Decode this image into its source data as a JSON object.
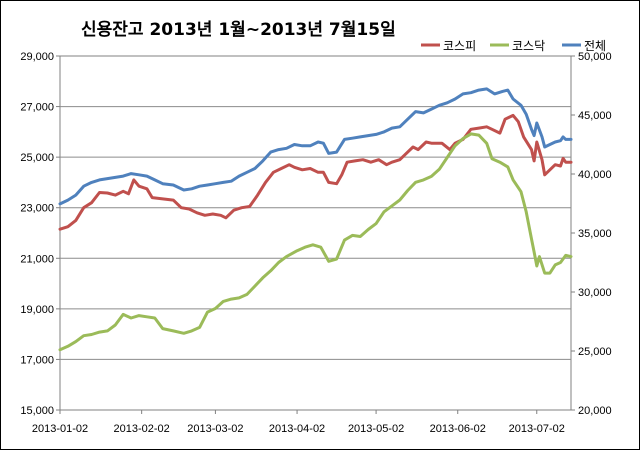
{
  "chart_data": {
    "type": "line",
    "title": "신용잔고  2013년 1월~2013년 7월15일",
    "legend_position": "top-right",
    "grid": true,
    "x_range": [
      "2013-01-02",
      "2013-07-15"
    ],
    "x_ticks": [
      "2013-01-02",
      "2013-02-02",
      "2013-03-02",
      "2013-04-02",
      "2013-05-02",
      "2013-06-02",
      "2013-07-02"
    ],
    "y_left": {
      "ylim": [
        15000,
        29000
      ],
      "ticks": [
        15000,
        17000,
        19000,
        21000,
        23000,
        25000,
        27000,
        29000
      ],
      "tick_labels": [
        "15,000",
        "17,000",
        "19,000",
        "21,000",
        "23,000",
        "25,000",
        "27,000",
        "29,000"
      ]
    },
    "y_right": {
      "ylim": [
        20000,
        50000
      ],
      "ticks": [
        20000,
        25000,
        30000,
        35000,
        40000,
        45000,
        50000
      ],
      "tick_labels": [
        "20,000",
        "25,000",
        "30,000",
        "35,000",
        "40,000",
        "45,000",
        "50,000"
      ]
    },
    "series": [
      {
        "name": "코스피",
        "color": "#c0504d",
        "axis": "left",
        "points": [
          [
            "2013-01-02",
            22150
          ],
          [
            "2013-01-05",
            22250
          ],
          [
            "2013-01-08",
            22500
          ],
          [
            "2013-01-11",
            23000
          ],
          [
            "2013-01-14",
            23200
          ],
          [
            "2013-01-17",
            23600
          ],
          [
            "2013-01-20",
            23580
          ],
          [
            "2013-01-23",
            23500
          ],
          [
            "2013-01-26",
            23650
          ],
          [
            "2013-01-28",
            23550
          ],
          [
            "2013-01-30",
            24100
          ],
          [
            "2013-02-01",
            23850
          ],
          [
            "2013-02-04",
            23750
          ],
          [
            "2013-02-06",
            23400
          ],
          [
            "2013-02-10",
            23350
          ],
          [
            "2013-02-14",
            23300
          ],
          [
            "2013-02-17",
            23000
          ],
          [
            "2013-02-20",
            22950
          ],
          [
            "2013-02-23",
            22800
          ],
          [
            "2013-02-26",
            22700
          ],
          [
            "2013-03-01",
            22750
          ],
          [
            "2013-03-04",
            22700
          ],
          [
            "2013-03-06",
            22600
          ],
          [
            "2013-03-09",
            22900
          ],
          [
            "2013-03-12",
            23000
          ],
          [
            "2013-03-15",
            23050
          ],
          [
            "2013-03-18",
            23500
          ],
          [
            "2013-03-21",
            24000
          ],
          [
            "2013-03-24",
            24400
          ],
          [
            "2013-03-27",
            24550
          ],
          [
            "2013-03-30",
            24700
          ],
          [
            "2013-04-01",
            24600
          ],
          [
            "2013-04-04",
            24500
          ],
          [
            "2013-04-07",
            24550
          ],
          [
            "2013-04-10",
            24400
          ],
          [
            "2013-04-12",
            24400
          ],
          [
            "2013-04-14",
            24000
          ],
          [
            "2013-04-17",
            23950
          ],
          [
            "2013-04-19",
            24300
          ],
          [
            "2013-04-21",
            24800
          ],
          [
            "2013-04-24",
            24850
          ],
          [
            "2013-04-27",
            24900
          ],
          [
            "2013-04-30",
            24800
          ],
          [
            "2013-05-03",
            24900
          ],
          [
            "2013-05-06",
            24700
          ],
          [
            "2013-05-08",
            24800
          ],
          [
            "2013-05-11",
            24900
          ],
          [
            "2013-05-14",
            25200
          ],
          [
            "2013-05-16",
            25400
          ],
          [
            "2013-05-18",
            25300
          ],
          [
            "2013-05-21",
            25600
          ],
          [
            "2013-05-23",
            25550
          ],
          [
            "2013-05-27",
            25550
          ],
          [
            "2013-05-30",
            25300
          ],
          [
            "2013-06-01",
            25550
          ],
          [
            "2013-06-04",
            25700
          ],
          [
            "2013-06-07",
            26100
          ],
          [
            "2013-06-10",
            26150
          ],
          [
            "2013-06-13",
            26200
          ],
          [
            "2013-06-15",
            26100
          ],
          [
            "2013-06-18",
            25950
          ],
          [
            "2013-06-20",
            26500
          ],
          [
            "2013-06-23",
            26650
          ],
          [
            "2013-06-25",
            26400
          ],
          [
            "2013-06-27",
            25800
          ],
          [
            "2013-06-30",
            25300
          ],
          [
            "2013-07-01",
            24850
          ],
          [
            "2013-07-02",
            25600
          ],
          [
            "2013-07-04",
            24900
          ],
          [
            "2013-07-05",
            24300
          ],
          [
            "2013-07-07",
            24500
          ],
          [
            "2013-07-09",
            24700
          ],
          [
            "2013-07-11",
            24650
          ],
          [
            "2013-07-12",
            24950
          ],
          [
            "2013-07-13",
            24800
          ],
          [
            "2013-07-15",
            24800
          ]
        ]
      },
      {
        "name": "코스닥",
        "color": "#9bbb59",
        "axis": "right",
        "points": [
          [
            "2013-01-02",
            25100
          ],
          [
            "2013-01-05",
            25400
          ],
          [
            "2013-01-08",
            25800
          ],
          [
            "2013-01-11",
            26300
          ],
          [
            "2013-01-14",
            26400
          ],
          [
            "2013-01-17",
            26600
          ],
          [
            "2013-01-20",
            26700
          ],
          [
            "2013-01-23",
            27200
          ],
          [
            "2013-01-26",
            28100
          ],
          [
            "2013-01-29",
            27800
          ],
          [
            "2013-02-01",
            28000
          ],
          [
            "2013-02-04",
            27900
          ],
          [
            "2013-02-07",
            27800
          ],
          [
            "2013-02-10",
            26900
          ],
          [
            "2013-02-14",
            26700
          ],
          [
            "2013-02-18",
            26500
          ],
          [
            "2013-02-21",
            26700
          ],
          [
            "2013-02-24",
            27000
          ],
          [
            "2013-02-27",
            28300
          ],
          [
            "2013-03-02",
            28600
          ],
          [
            "2013-03-05",
            29200
          ],
          [
            "2013-03-08",
            29400
          ],
          [
            "2013-03-11",
            29500
          ],
          [
            "2013-03-14",
            29800
          ],
          [
            "2013-03-17",
            30500
          ],
          [
            "2013-03-20",
            31200
          ],
          [
            "2013-03-23",
            31800
          ],
          [
            "2013-03-26",
            32500
          ],
          [
            "2013-03-29",
            33000
          ],
          [
            "2013-04-02",
            33500
          ],
          [
            "2013-04-05",
            33800
          ],
          [
            "2013-04-08",
            34000
          ],
          [
            "2013-04-11",
            33800
          ],
          [
            "2013-04-14",
            32600
          ],
          [
            "2013-04-17",
            32800
          ],
          [
            "2013-04-20",
            34400
          ],
          [
            "2013-04-23",
            34800
          ],
          [
            "2013-04-26",
            34700
          ],
          [
            "2013-04-29",
            35300
          ],
          [
            "2013-05-02",
            35800
          ],
          [
            "2013-05-05",
            36800
          ],
          [
            "2013-05-08",
            37300
          ],
          [
            "2013-05-11",
            37800
          ],
          [
            "2013-05-14",
            38600
          ],
          [
            "2013-05-17",
            39300
          ],
          [
            "2013-05-20",
            39500
          ],
          [
            "2013-05-23",
            39800
          ],
          [
            "2013-05-26",
            40400
          ],
          [
            "2013-05-29",
            41400
          ],
          [
            "2013-06-01",
            42400
          ],
          [
            "2013-06-04",
            43000
          ],
          [
            "2013-06-07",
            43400
          ],
          [
            "2013-06-10",
            43300
          ],
          [
            "2013-06-13",
            42600
          ],
          [
            "2013-06-15",
            41300
          ],
          [
            "2013-06-18",
            41000
          ],
          [
            "2013-06-21",
            40600
          ],
          [
            "2013-06-23",
            39500
          ],
          [
            "2013-06-26",
            38500
          ],
          [
            "2013-06-28",
            36800
          ],
          [
            "2013-06-30",
            34500
          ],
          [
            "2013-07-01",
            33400
          ],
          [
            "2013-07-02",
            32200
          ],
          [
            "2013-07-03",
            33000
          ],
          [
            "2013-07-05",
            31600
          ],
          [
            "2013-07-07",
            31600
          ],
          [
            "2013-07-09",
            32300
          ],
          [
            "2013-07-11",
            32500
          ],
          [
            "2013-07-13",
            33100
          ],
          [
            "2013-07-15",
            33000
          ]
        ]
      },
      {
        "name": "전체",
        "color": "#4f81bd",
        "axis": "left",
        "points": [
          [
            "2013-01-02",
            23150
          ],
          [
            "2013-01-05",
            23300
          ],
          [
            "2013-01-08",
            23500
          ],
          [
            "2013-01-11",
            23850
          ],
          [
            "2013-01-14",
            24000
          ],
          [
            "2013-01-17",
            24100
          ],
          [
            "2013-01-20",
            24150
          ],
          [
            "2013-01-23",
            24200
          ],
          [
            "2013-01-26",
            24250
          ],
          [
            "2013-01-29",
            24350
          ],
          [
            "2013-02-01",
            24300
          ],
          [
            "2013-02-04",
            24250
          ],
          [
            "2013-02-07",
            24100
          ],
          [
            "2013-02-10",
            23950
          ],
          [
            "2013-02-14",
            23900
          ],
          [
            "2013-02-18",
            23700
          ],
          [
            "2013-02-21",
            23750
          ],
          [
            "2013-02-24",
            23850
          ],
          [
            "2013-02-27",
            23900
          ],
          [
            "2013-03-02",
            23950
          ],
          [
            "2013-03-05",
            24000
          ],
          [
            "2013-03-08",
            24050
          ],
          [
            "2013-03-11",
            24250
          ],
          [
            "2013-03-14",
            24400
          ],
          [
            "2013-03-17",
            24550
          ],
          [
            "2013-03-20",
            24850
          ],
          [
            "2013-03-23",
            25200
          ],
          [
            "2013-03-26",
            25300
          ],
          [
            "2013-03-29",
            25350
          ],
          [
            "2013-04-01",
            25500
          ],
          [
            "2013-04-04",
            25450
          ],
          [
            "2013-04-07",
            25450
          ],
          [
            "2013-04-10",
            25600
          ],
          [
            "2013-04-12",
            25550
          ],
          [
            "2013-04-14",
            25150
          ],
          [
            "2013-04-17",
            25200
          ],
          [
            "2013-04-20",
            25700
          ],
          [
            "2013-04-23",
            25750
          ],
          [
            "2013-04-26",
            25800
          ],
          [
            "2013-04-29",
            25850
          ],
          [
            "2013-05-02",
            25900
          ],
          [
            "2013-05-05",
            26000
          ],
          [
            "2013-05-08",
            26150
          ],
          [
            "2013-05-11",
            26200
          ],
          [
            "2013-05-14",
            26500
          ],
          [
            "2013-05-17",
            26800
          ],
          [
            "2013-05-20",
            26750
          ],
          [
            "2013-05-23",
            26900
          ],
          [
            "2013-05-26",
            27050
          ],
          [
            "2013-05-29",
            27150
          ],
          [
            "2013-06-01",
            27300
          ],
          [
            "2013-06-04",
            27500
          ],
          [
            "2013-06-07",
            27550
          ],
          [
            "2013-06-10",
            27650
          ],
          [
            "2013-06-13",
            27700
          ],
          [
            "2013-06-16",
            27500
          ],
          [
            "2013-06-19",
            27600
          ],
          [
            "2013-06-21",
            27650
          ],
          [
            "2013-06-23",
            27300
          ],
          [
            "2013-06-26",
            27050
          ],
          [
            "2013-06-28",
            26700
          ],
          [
            "2013-06-30",
            26100
          ],
          [
            "2013-07-01",
            25850
          ],
          [
            "2013-07-02",
            26350
          ],
          [
            "2013-07-04",
            25800
          ],
          [
            "2013-07-05",
            25400
          ],
          [
            "2013-07-07",
            25500
          ],
          [
            "2013-07-09",
            25600
          ],
          [
            "2013-07-11",
            25650
          ],
          [
            "2013-07-12",
            25800
          ],
          [
            "2013-07-13",
            25700
          ],
          [
            "2013-07-15",
            25700
          ]
        ]
      }
    ]
  }
}
